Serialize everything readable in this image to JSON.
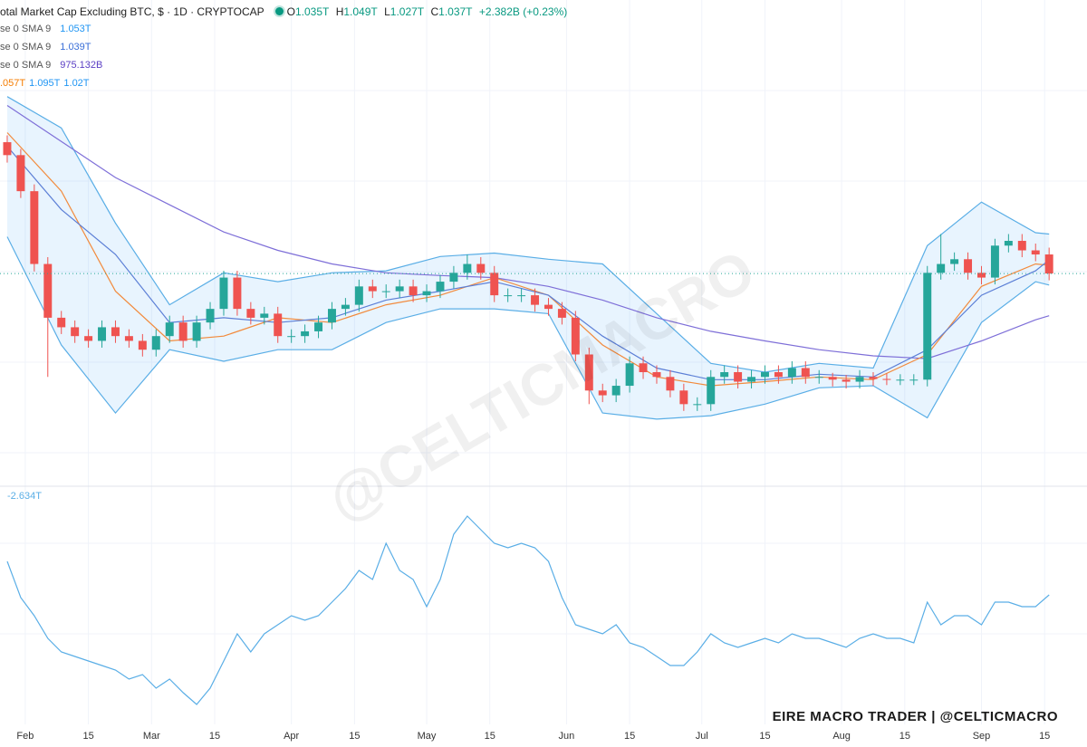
{
  "header": {
    "title": "otal Market Cap Excluding BTC, $ · 1D · CRYPTOCAP",
    "ohlc": [
      {
        "key": "O",
        "value": "1.035T"
      },
      {
        "key": "H",
        "value": "1.049T"
      },
      {
        "key": "L",
        "value": "1.027T"
      },
      {
        "key": "C",
        "value": "1.037T"
      }
    ],
    "change": "+2.382B (+0.23%)",
    "color": "#089981"
  },
  "indicators": [
    {
      "label": "se 0 SMA 9",
      "values": [
        "1.053T"
      ],
      "colors": [
        "#2196f3"
      ]
    },
    {
      "label": "se 0 SMA 9",
      "values": [
        "1.039T"
      ],
      "colors": [
        "#3a6fd8"
      ]
    },
    {
      "label": "se 0 SMA 9",
      "values": [
        "975.132B"
      ],
      "colors": [
        "#5b3fc4"
      ]
    },
    {
      "values": [
        ".057T",
        "1.095T",
        "1.02T"
      ],
      "colors": [
        "#f57c00",
        "#2196f3",
        "#2196f3"
      ]
    }
  ],
  "watermark": "@CELTICMACRO",
  "footer": "EIRE MACRO TRADER | @CELTICMACRO",
  "chart_data": [
    {
      "type": "candlestick",
      "xlim": [
        26.4,
        267.4
      ],
      "ylim": [
        0.727,
        1.439
      ],
      "up_color": "#26a69a",
      "down_color": "#ef5350",
      "x": [
        28,
        31,
        34,
        37,
        40,
        43,
        46,
        49,
        52,
        55,
        58,
        61,
        64,
        67,
        70,
        73,
        76,
        79,
        82,
        85,
        88,
        91,
        94,
        97,
        100,
        103,
        106,
        109,
        112,
        115,
        118,
        121,
        124,
        127,
        130,
        133,
        136,
        139,
        142,
        145,
        148,
        151,
        154,
        157,
        160,
        163,
        166,
        169,
        172,
        175,
        178,
        181,
        184,
        187,
        190,
        193,
        196,
        199,
        202,
        205,
        208,
        211,
        214,
        217,
        220,
        223,
        226,
        229,
        232,
        235,
        238,
        241,
        244,
        247,
        250,
        253,
        256,
        259
      ],
      "open": [
        1.23,
        1.211,
        1.158,
        1.051,
        0.972,
        0.958,
        0.945,
        0.938,
        0.958,
        0.945,
        0.938,
        0.925,
        0.945,
        0.965,
        0.938,
        0.965,
        0.985,
        1.031,
        0.985,
        0.972,
        0.978,
        0.945,
        0.945,
        0.952,
        0.965,
        0.985,
        0.991,
        1.018,
        1.011,
        1.011,
        1.018,
        1.005,
        1.011,
        1.025,
        1.038,
        1.051,
        1.038,
        1.005,
        1.005,
        1.005,
        0.991,
        0.985,
        0.972,
        0.918,
        0.865,
        0.858,
        0.872,
        0.905,
        0.892,
        0.885,
        0.865,
        0.845,
        0.845,
        0.885,
        0.892,
        0.878,
        0.885,
        0.892,
        0.885,
        0.898,
        0.885,
        0.885,
        0.881,
        0.878,
        0.885,
        0.882,
        0.881,
        0.881,
        0.881,
        1.038,
        1.051,
        1.058,
        1.038,
        1.031,
        1.078,
        1.085,
        1.071,
        1.065
      ],
      "high": [
        1.24,
        1.22,
        1.168,
        1.061,
        0.982,
        0.968,
        0.955,
        0.968,
        0.968,
        0.955,
        0.948,
        0.955,
        0.975,
        0.975,
        0.975,
        0.995,
        1.041,
        1.041,
        0.995,
        0.988,
        0.988,
        0.955,
        0.962,
        0.975,
        0.995,
        1.001,
        1.028,
        1.028,
        1.021,
        1.028,
        1.028,
        1.021,
        1.035,
        1.048,
        1.065,
        1.061,
        1.048,
        1.015,
        1.015,
        1.015,
        1.001,
        0.995,
        0.982,
        0.928,
        0.875,
        0.882,
        0.915,
        0.915,
        0.902,
        0.895,
        0.875,
        0.855,
        0.895,
        0.902,
        0.902,
        0.895,
        0.902,
        0.902,
        0.908,
        0.908,
        0.895,
        0.891,
        0.888,
        0.895,
        0.892,
        0.89,
        0.889,
        0.889,
        1.048,
        1.095,
        1.068,
        1.068,
        1.048,
        1.088,
        1.095,
        1.095,
        1.081,
        1.075
      ],
      "low": [
        1.2,
        1.148,
        1.04,
        0.885,
        0.948,
        0.935,
        0.928,
        0.928,
        0.935,
        0.928,
        0.915,
        0.915,
        0.935,
        0.928,
        0.928,
        0.955,
        0.975,
        0.975,
        0.962,
        0.962,
        0.935,
        0.935,
        0.935,
        0.942,
        0.955,
        0.975,
        0.981,
        1.001,
        1.001,
        1.001,
        0.995,
        0.995,
        1.001,
        1.015,
        1.028,
        1.028,
        0.995,
        0.995,
        0.995,
        0.981,
        0.975,
        0.962,
        0.908,
        0.845,
        0.848,
        0.848,
        0.862,
        0.882,
        0.875,
        0.855,
        0.835,
        0.835,
        0.835,
        0.875,
        0.868,
        0.868,
        0.875,
        0.875,
        0.875,
        0.875,
        0.875,
        0.871,
        0.868,
        0.868,
        0.872,
        0.873,
        0.873,
        0.873,
        0.871,
        1.028,
        1.041,
        1.028,
        1.021,
        1.021,
        1.068,
        1.061,
        1.055,
        1.027
      ],
      "close": [
        1.211,
        1.158,
        1.051,
        0.972,
        0.958,
        0.945,
        0.938,
        0.958,
        0.945,
        0.938,
        0.925,
        0.945,
        0.965,
        0.938,
        0.965,
        0.985,
        1.031,
        0.985,
        0.972,
        0.978,
        0.945,
        0.945,
        0.952,
        0.965,
        0.985,
        0.991,
        1.018,
        1.011,
        1.011,
        1.018,
        1.005,
        1.011,
        1.025,
        1.038,
        1.051,
        1.038,
        1.005,
        1.005,
        1.005,
        0.991,
        0.985,
        0.972,
        0.918,
        0.865,
        0.858,
        0.872,
        0.905,
        0.892,
        0.885,
        0.865,
        0.845,
        0.845,
        0.885,
        0.892,
        0.878,
        0.885,
        0.892,
        0.885,
        0.898,
        0.885,
        0.885,
        0.881,
        0.878,
        0.885,
        0.882,
        0.881,
        0.881,
        0.881,
        1.038,
        1.051,
        1.058,
        1.038,
        1.031,
        1.078,
        1.085,
        1.071,
        1.065,
        1.037
      ],
      "band": {
        "color": "#5aaee6",
        "fill": "rgba(33,150,243,0.1)",
        "x": [
          28,
          40,
          52,
          64,
          76,
          88,
          100,
          112,
          124,
          136,
          148,
          160,
          172,
          184,
          196,
          208,
          220,
          232,
          244,
          256,
          259
        ],
        "upper": [
          1.297,
          1.251,
          1.111,
          0.991,
          1.038,
          1.025,
          1.038,
          1.041,
          1.062,
          1.067,
          1.058,
          1.051,
          0.978,
          0.905,
          0.892,
          0.905,
          0.898,
          1.078,
          1.142,
          1.097,
          1.095
        ],
        "lower": [
          1.091,
          0.932,
          0.832,
          0.925,
          0.908,
          0.925,
          0.925,
          0.965,
          0.985,
          0.985,
          0.978,
          0.832,
          0.823,
          0.828,
          0.845,
          0.869,
          0.872,
          0.825,
          0.965,
          1.025,
          1.02
        ]
      },
      "overlays": [
        {
          "color": "#7e6fd8",
          "x": [
            28,
            40,
            52,
            64,
            76,
            88,
            100,
            112,
            124,
            136,
            148,
            160,
            172,
            184,
            196,
            208,
            220,
            232,
            244,
            256,
            259
          ],
          "values": [
            1.284,
            1.231,
            1.178,
            1.138,
            1.098,
            1.071,
            1.051,
            1.038,
            1.034,
            1.031,
            1.018,
            0.998,
            0.972,
            0.952,
            0.938,
            0.925,
            0.916,
            0.912,
            0.938,
            0.969,
            0.975
          ]
        },
        {
          "color": "#f28a3c",
          "x": [
            28,
            40,
            52,
            64,
            76,
            88,
            100,
            112,
            124,
            136,
            148,
            160,
            172,
            184,
            196,
            208,
            220,
            232,
            244,
            256,
            259
          ],
          "values": [
            1.244,
            1.158,
            1.011,
            0.938,
            0.945,
            0.972,
            0.965,
            0.991,
            1.005,
            1.031,
            1.005,
            0.932,
            0.885,
            0.872,
            0.878,
            0.885,
            0.881,
            0.918,
            1.018,
            1.051,
            1.049
          ]
        },
        {
          "color": "#5c7fd6",
          "x": [
            28,
            40,
            52,
            64,
            76,
            88,
            100,
            112,
            124,
            136,
            148,
            160,
            172,
            184,
            196,
            208,
            220,
            232,
            244,
            256,
            259
          ],
          "values": [
            1.224,
            1.131,
            1.065,
            0.965,
            0.972,
            0.965,
            0.972,
            0.998,
            1.011,
            1.025,
            1.005,
            0.945,
            0.898,
            0.881,
            0.881,
            0.889,
            0.885,
            0.925,
            1.005,
            1.041,
            1.057
          ]
        }
      ]
    },
    {
      "type": "line",
      "label": "-2.634T",
      "color": "#5aaee6",
      "xlim": [
        26.4,
        267.4
      ],
      "ylim": [
        -3.206,
        -2.166
      ],
      "xticks": [
        {
          "value": 32,
          "label": "Feb"
        },
        {
          "value": 46,
          "label": "15"
        },
        {
          "value": 60,
          "label": "Mar"
        },
        {
          "value": 74,
          "label": "15"
        },
        {
          "value": 91,
          "label": "Apr"
        },
        {
          "value": 105,
          "label": "15"
        },
        {
          "value": 121,
          "label": "May"
        },
        {
          "value": 135,
          "label": "15"
        },
        {
          "value": 152,
          "label": "Jun"
        },
        {
          "value": 166,
          "label": "15"
        },
        {
          "value": 182,
          "label": "Jul"
        },
        {
          "value": 196,
          "label": "15"
        },
        {
          "value": 213,
          "label": "Aug"
        },
        {
          "value": 227,
          "label": "15"
        },
        {
          "value": 244,
          "label": "Sep"
        },
        {
          "value": 258,
          "label": "15"
        }
      ],
      "x": [
        28,
        31,
        34,
        37,
        40,
        43,
        46,
        49,
        52,
        55,
        58,
        61,
        64,
        67,
        70,
        73,
        76,
        79,
        82,
        85,
        88,
        91,
        94,
        97,
        100,
        103,
        106,
        109,
        112,
        115,
        118,
        121,
        124,
        127,
        130,
        133,
        136,
        139,
        142,
        145,
        148,
        151,
        154,
        157,
        160,
        163,
        166,
        169,
        172,
        175,
        178,
        181,
        184,
        187,
        190,
        193,
        196,
        199,
        202,
        205,
        208,
        211,
        214,
        217,
        220,
        223,
        226,
        229,
        232,
        235,
        238,
        241,
        244,
        247,
        250,
        253,
        256,
        259
      ],
      "values": [
        -2.486,
        -2.646,
        -2.726,
        -2.826,
        -2.886,
        -2.906,
        -2.926,
        -2.946,
        -2.966,
        -3.006,
        -2.986,
        -3.046,
        -3.006,
        -3.066,
        -3.118,
        -3.046,
        -2.926,
        -2.806,
        -2.886,
        -2.806,
        -2.766,
        -2.726,
        -2.746,
        -2.726,
        -2.666,
        -2.606,
        -2.526,
        -2.566,
        -2.406,
        -2.526,
        -2.566,
        -2.686,
        -2.566,
        -2.366,
        -2.286,
        -2.346,
        -2.406,
        -2.426,
        -2.406,
        -2.426,
        -2.486,
        -2.646,
        -2.766,
        -2.786,
        -2.806,
        -2.766,
        -2.846,
        -2.866,
        -2.906,
        -2.946,
        -2.946,
        -2.886,
        -2.806,
        -2.846,
        -2.866,
        -2.846,
        -2.826,
        -2.846,
        -2.806,
        -2.826,
        -2.826,
        -2.846,
        -2.866,
        -2.826,
        -2.806,
        -2.826,
        -2.826,
        -2.846,
        -2.666,
        -2.766,
        -2.726,
        -2.726,
        -2.766,
        -2.666,
        -2.666,
        -2.686,
        -2.686,
        -2.634
      ]
    }
  ]
}
